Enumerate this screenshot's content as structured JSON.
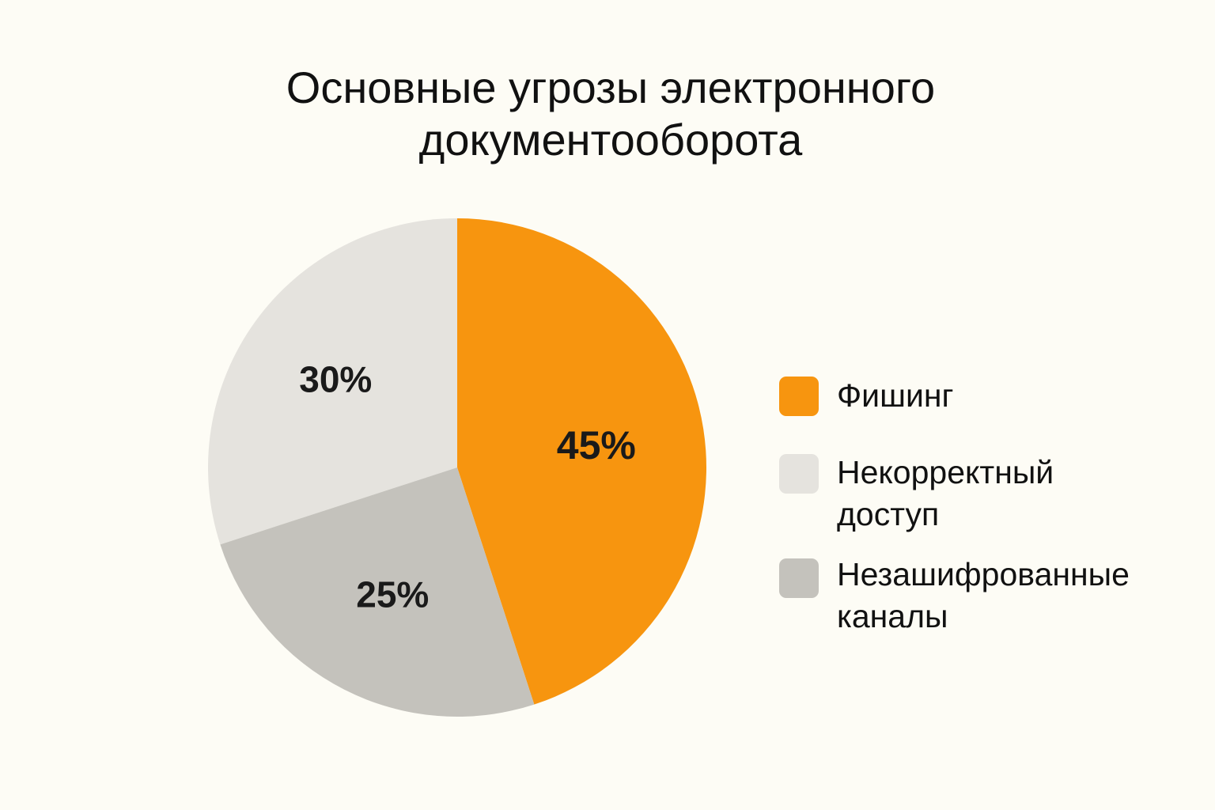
{
  "chart_data": {
    "type": "pie",
    "title_lines": [
      "Основные угрозы электронного",
      "документооборота"
    ],
    "slices": [
      {
        "label_lines": [
          "Фишинг"
        ],
        "value": 45,
        "display": "45%",
        "color": "#f7950f"
      },
      {
        "label_lines": [
          "Некорректный",
          "доступ"
        ],
        "value": 30,
        "display": "30%",
        "color": "#e5e3de"
      },
      {
        "label_lines": [
          "Незашифрованные",
          "каналы"
        ],
        "value": 25,
        "display": "25%",
        "color": "#c4c2bc"
      }
    ],
    "legend_position": "right"
  }
}
